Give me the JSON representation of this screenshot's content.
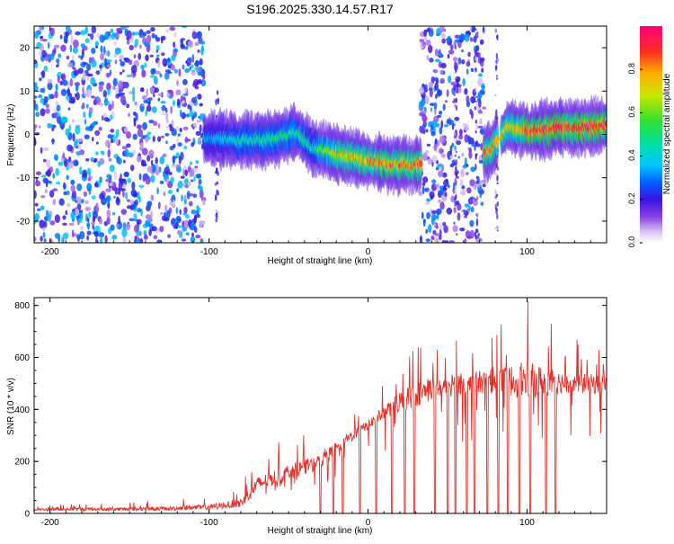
{
  "figure": {
    "title": "S196.2025.330.14.57.R17"
  },
  "chart_data": [
    {
      "id": "spectrogram",
      "type": "heatmap",
      "title": "S196.2025.330.14.57.R17",
      "xlabel": "Height of straight line (km)",
      "ylabel": "Frequency (Hz)",
      "xlim": [
        -210,
        150
      ],
      "ylim": [
        -25,
        25
      ],
      "x_ticks": [
        -200,
        -100,
        0,
        100
      ],
      "y_ticks": [
        -20,
        -10,
        0,
        10,
        20
      ],
      "noise_regions": [
        {
          "x_range": [
            -210,
            -103
          ],
          "y_range": [
            -25,
            25
          ],
          "intensity": 0.35
        },
        {
          "x_range": [
            33,
            73
          ],
          "y_range": [
            -25,
            25
          ],
          "intensity": 0.3
        }
      ],
      "ridge": [
        {
          "x": -100,
          "y": -1.0,
          "amp": 0.35
        },
        {
          "x": -80,
          "y": -1.5,
          "amp": 0.45
        },
        {
          "x": -60,
          "y": -1.0,
          "amp": 0.5
        },
        {
          "x": -45,
          "y": 0.5,
          "amp": 0.5
        },
        {
          "x": -35,
          "y": -3.0,
          "amp": 0.45
        },
        {
          "x": -20,
          "y": -4.5,
          "amp": 0.75
        },
        {
          "x": 0,
          "y": -6.0,
          "amp": 0.8
        },
        {
          "x": 15,
          "y": -7.0,
          "amp": 0.85
        },
        {
          "x": 30,
          "y": -7.0,
          "amp": 0.85
        },
        {
          "x": 77,
          "y": -4.0,
          "amp": 0.85
        },
        {
          "x": 88,
          "y": 2.0,
          "amp": 0.7
        },
        {
          "x": 100,
          "y": 0.8,
          "amp": 0.9
        },
        {
          "x": 120,
          "y": 1.5,
          "amp": 0.95
        },
        {
          "x": 150,
          "y": 2.0,
          "amp": 0.95
        }
      ]
    },
    {
      "id": "colorbar",
      "type": "colorbar",
      "label": "Normalized spectral amplitude",
      "range": [
        0,
        1
      ],
      "ticks": [
        0.0,
        0.2,
        0.4,
        0.6,
        0.8
      ]
    },
    {
      "id": "snr",
      "type": "line",
      "xlabel": "Height of straight line (km)",
      "ylabel": "SNR (10 * v/v)",
      "xlim": [
        -210,
        150
      ],
      "ylim": [
        0,
        830
      ],
      "x_ticks": [
        -200,
        -100,
        0,
        100
      ],
      "y_ticks": [
        0,
        200,
        400,
        600,
        800
      ],
      "color": "#e8302a",
      "envelope": {
        "x": [
          -210,
          -130,
          -100,
          -80,
          -70,
          -50,
          -30,
          -20,
          -10,
          0,
          10,
          20,
          40,
          60,
          80,
          100,
          120,
          150
        ],
        "mean": [
          15,
          18,
          25,
          40,
          110,
          160,
          200,
          250,
          300,
          340,
          390,
          430,
          480,
          500,
          510,
          510,
          505,
          495
        ],
        "spike": [
          35,
          50,
          70,
          120,
          240,
          290,
          320,
          360,
          400,
          420,
          500,
          620,
          690,
          680,
          720,
          830,
          700,
          650
        ]
      },
      "dropouts_x": [
        -30,
        -22,
        -16,
        -5,
        5,
        15,
        23,
        29,
        42,
        50,
        55,
        62,
        67,
        75,
        82,
        88,
        95,
        102,
        112,
        118
      ]
    }
  ]
}
